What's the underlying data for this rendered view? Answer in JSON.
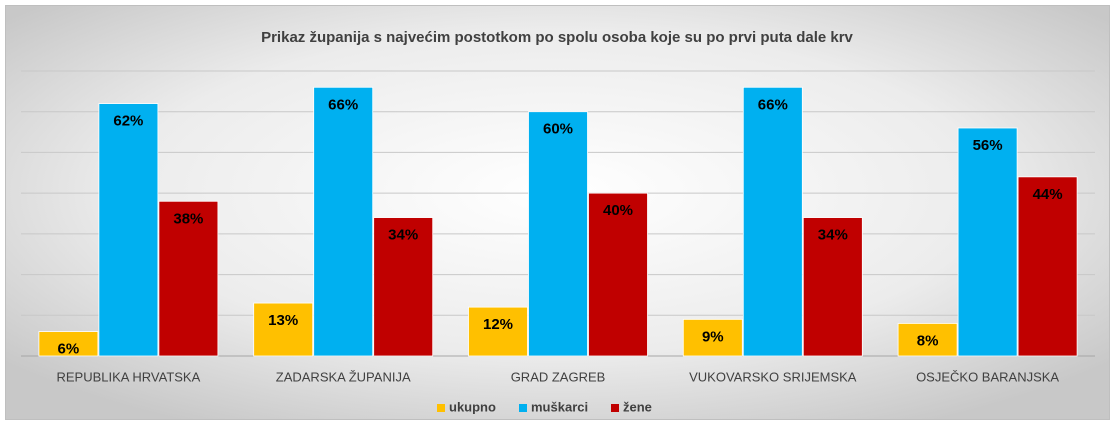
{
  "chart_data": {
    "type": "bar",
    "title": "Prikaz županija s najvećim postotkom po spolu osoba koje su po prvi puta dale krv",
    "categories": [
      "REPUBLIKA HRVATSKA",
      "ZADARSKA ŽUPANIJA",
      "GRAD ZAGREB",
      "VUKOVARSKO SRIJEMSKA",
      "OSJEČKO BARANJSKA"
    ],
    "series": [
      {
        "name": "ukupno",
        "color": "#ffc000",
        "values": [
          6,
          13,
          12,
          9,
          8
        ],
        "value_labels": [
          "6%",
          "13%",
          "12%",
          "9%",
          "8%"
        ]
      },
      {
        "name": "muškarci",
        "color": "#00b0f0",
        "values": [
          62,
          66,
          60,
          66,
          56
        ],
        "value_labels": [
          "62%",
          "66%",
          "60%",
          "66%",
          "56%"
        ]
      },
      {
        "name": "žene",
        "color": "#c00000",
        "values": [
          38,
          34,
          40,
          34,
          44
        ],
        "value_labels": [
          "38%",
          "34%",
          "40%",
          "34%",
          "44%"
        ]
      }
    ],
    "ylim": [
      0,
      70
    ],
    "yticks": [
      0,
      10,
      20,
      30,
      40,
      50,
      60,
      70
    ],
    "grid": true,
    "legend": "bottom"
  }
}
